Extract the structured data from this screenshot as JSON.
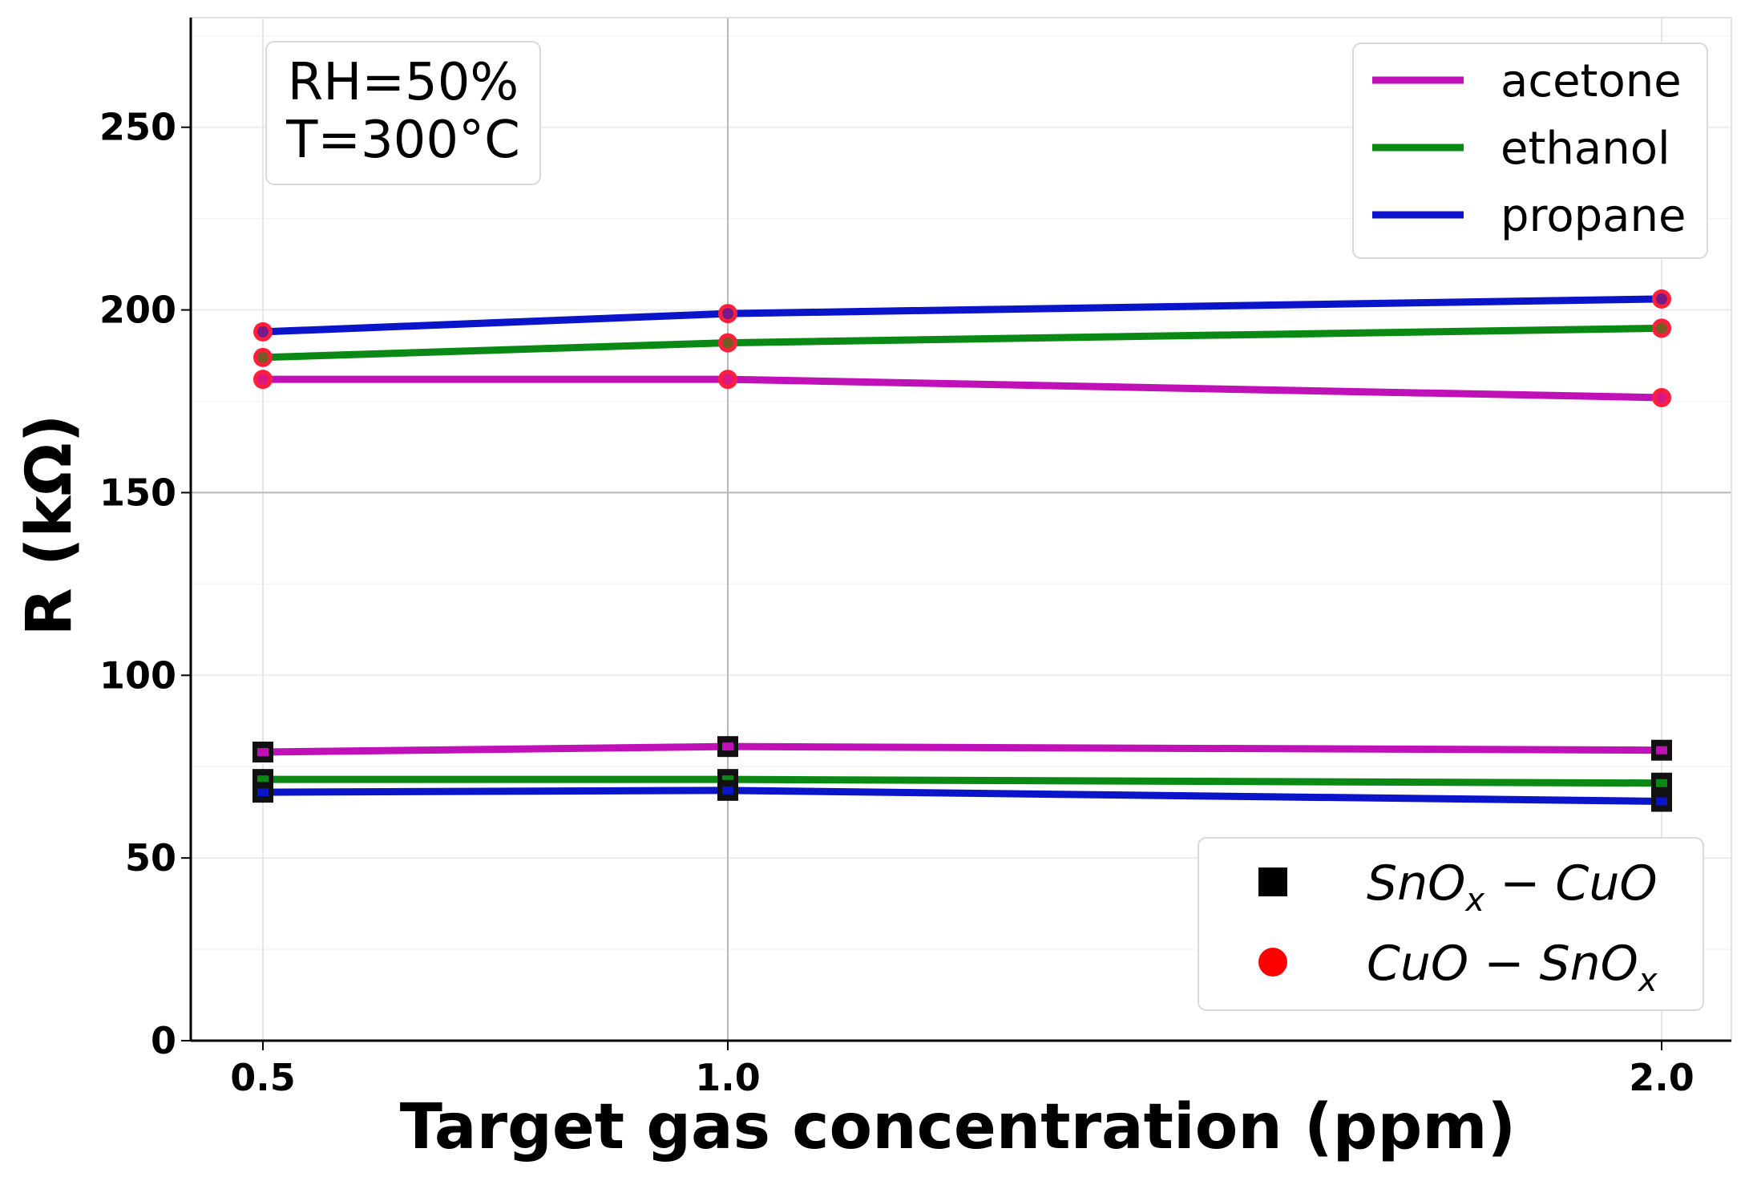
{
  "chart_data": {
    "type": "line",
    "xlabel": "Target gas concentration (ppm)",
    "ylabel": "R (kΩ)",
    "x_ticks": [
      "0.5",
      "1.0",
      "2.0"
    ],
    "y_ticks": [
      "0",
      "50",
      "100",
      "150",
      "200",
      "250"
    ],
    "ylim": [
      0,
      280
    ],
    "grid": true,
    "annotation": [
      "RH=50%",
      "T=300°C"
    ],
    "color_legend": {
      "placement": "top-right",
      "entries": [
        {
          "label": "acetone",
          "color": "#c010b8"
        },
        {
          "label": "ethanol",
          "color": "#0a8a14"
        },
        {
          "label": "propane",
          "color": "#0a14c8"
        }
      ]
    },
    "marker_legend": {
      "placement": "bottom-right",
      "entries": [
        {
          "material": "SnO",
          "sub": "x",
          "rest": " − CuO",
          "marker": "square",
          "color": "#000000"
        },
        {
          "material": "CuO − SnO",
          "sub": "x",
          "rest": "",
          "marker": "circle",
          "color": "#ff0000"
        }
      ]
    },
    "x_categories": [
      "0.5",
      "1.0",
      "2.0"
    ],
    "series": [
      {
        "gas": "acetone",
        "material": "CuO-SnOx",
        "color": "#c010b8",
        "marker": "circle",
        "values": [
          181,
          181,
          176
        ]
      },
      {
        "gas": "ethanol",
        "material": "CuO-SnOx",
        "color": "#0a8a14",
        "marker": "circle",
        "values": [
          187,
          191,
          195
        ]
      },
      {
        "gas": "propane",
        "material": "CuO-SnOx",
        "color": "#0a14c8",
        "marker": "circle",
        "values": [
          194,
          199,
          203
        ]
      },
      {
        "gas": "acetone",
        "material": "SnOx-CuO",
        "color": "#c010b8",
        "marker": "square",
        "values": [
          79,
          80.5,
          79.5
        ]
      },
      {
        "gas": "ethanol",
        "material": "SnOx-CuO",
        "color": "#0a8a14",
        "marker": "square",
        "values": [
          71.5,
          71.5,
          70.5
        ]
      },
      {
        "gas": "propane",
        "material": "SnOx-CuO",
        "color": "#0a14c8",
        "marker": "square",
        "values": [
          68,
          68.5,
          65.5
        ]
      }
    ]
  }
}
